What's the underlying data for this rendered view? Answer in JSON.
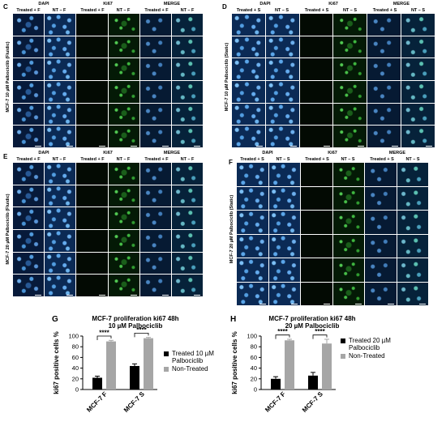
{
  "panels": {
    "C": {
      "letter": "C",
      "row_label": "MCF-7 10 µM Palbociclib (Fluidic)",
      "channels": [
        "DAPI",
        "Ki67",
        "MERGE"
      ],
      "sub_left": "Treated + F",
      "sub_right": "NT – F"
    },
    "D": {
      "letter": "D",
      "row_label": "MCF-7 10 µM Palbociclib (Static)",
      "channels": [
        "DAPI",
        "Ki67",
        "MERGE"
      ],
      "sub_left": "Treated + S",
      "sub_right": "NT – S"
    },
    "E": {
      "letter": "E",
      "row_label": "MCF-7 20 µM Palbociclib (Fluidic)",
      "channels": [
        "DAPI",
        "Ki67",
        "MERGE"
      ],
      "sub_left": "Treated + F",
      "sub_right": "NT – F"
    },
    "F": {
      "letter": "F",
      "row_label": "MCF-7 20 µM Palbociclib (Static)",
      "channels": [
        "DAPI",
        "Ki67",
        "MERGE"
      ],
      "sub_left": "Treated + S",
      "sub_right": "NT – S"
    }
  },
  "colors": {
    "treated": "#000000",
    "non_treated": "#a6a6a6"
  },
  "chart_data": [
    {
      "panel": "G",
      "type": "bar",
      "title": "MCF-7 proliferation ki67 48h",
      "subtitle": "10 µM Palbociclib",
      "ylabel": "ki67 positive cells %",
      "xlabel": "",
      "ylim": [
        0,
        100
      ],
      "yticks": [
        0,
        20,
        40,
        60,
        80,
        100
      ],
      "categories": [
        "MCF-7 F",
        "MCF-7 S"
      ],
      "series": [
        {
          "name": "Treated 10 µM Palbociclib",
          "values": [
            22,
            44
          ],
          "errors": [
            3,
            4
          ]
        },
        {
          "name": "Non-Treated",
          "values": [
            90,
            96
          ],
          "errors": [
            2,
            1.5
          ]
        }
      ],
      "significance": [
        "****",
        "****"
      ],
      "legend": "right",
      "grid": false
    },
    {
      "panel": "H",
      "type": "bar",
      "title": "MCF-7 proliferation ki67 48h",
      "subtitle": "20 µM Palbociclib",
      "ylabel": "ki67 positive cells %",
      "xlabel": "",
      "ylim": [
        0,
        100
      ],
      "yticks": [
        0,
        20,
        40,
        60,
        80,
        100
      ],
      "categories": [
        "MCF-7 F",
        "MCF-7 S"
      ],
      "series": [
        {
          "name": "Treated 20 µM Palbociclib",
          "values": [
            20,
            26
          ],
          "errors": [
            4,
            6
          ]
        },
        {
          "name": "Non-Treated",
          "values": [
            92,
            86
          ],
          "errors": [
            2,
            8
          ]
        }
      ],
      "significance": [
        "****",
        "****"
      ],
      "legend": "right",
      "grid": false
    }
  ]
}
